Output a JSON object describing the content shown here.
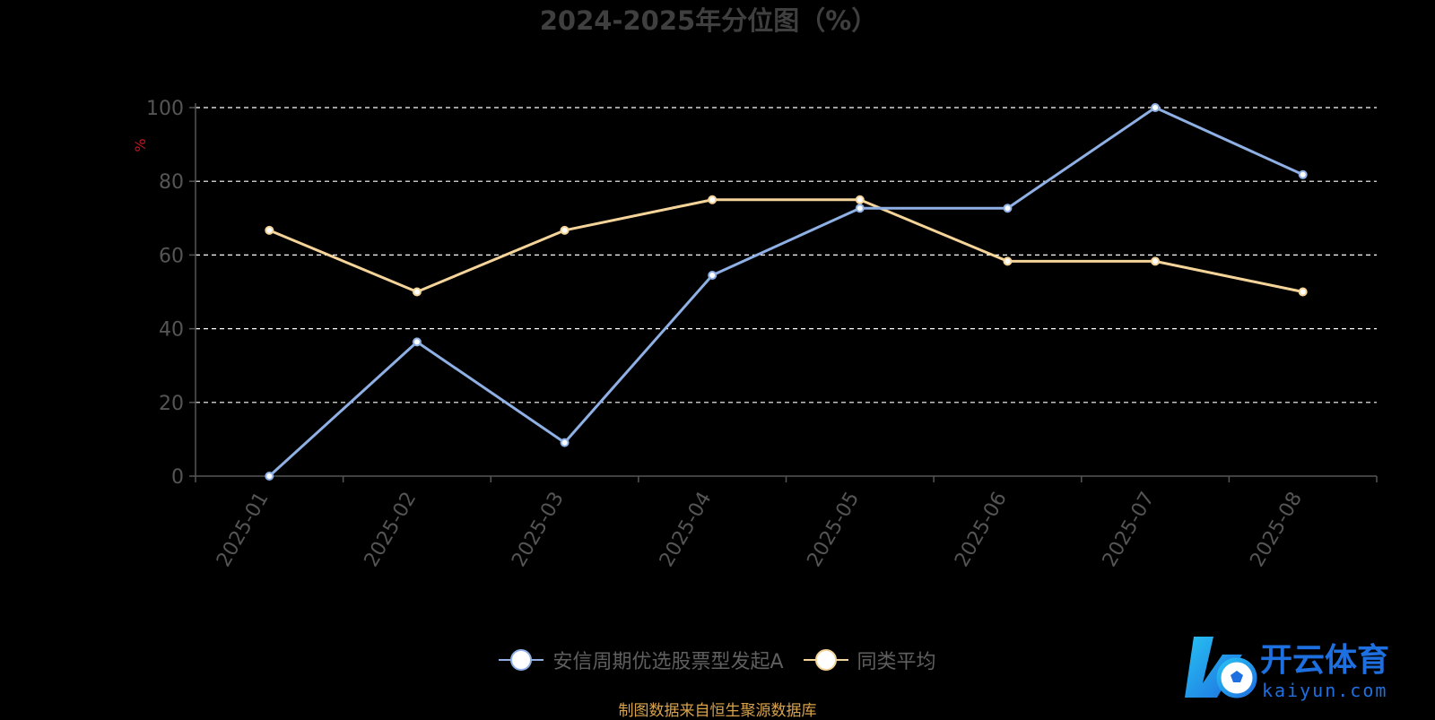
{
  "chart_data": {
    "type": "line",
    "title": "2024-2025年分位图（%）",
    "ylabel": "%",
    "ylim": [
      0,
      100
    ],
    "yticks": [
      0,
      20,
      40,
      60,
      80,
      100
    ],
    "grid": true,
    "legend_position": "bottom-center",
    "categories": [
      "2025-01",
      "2025-02",
      "2025-03",
      "2025-04",
      "2025-05",
      "2025-06",
      "2025-07",
      "2025-08"
    ],
    "series": [
      {
        "name": "安信周期优选股票型发起A",
        "color": "#8fb0e4",
        "values": [
          0,
          36.4,
          9.1,
          54.5,
          72.7,
          72.7,
          100,
          81.8
        ]
      },
      {
        "name": "同类平均",
        "color": "#f5d49a",
        "values": [
          66.7,
          50,
          66.7,
          75,
          75,
          58.3,
          58.3,
          50
        ]
      }
    ]
  },
  "source": "制图数据来自恒生聚源数据库",
  "watermark": {
    "brand": "开云体育",
    "domain": "kaiyun.com",
    "colors": [
      "#1e6fe0",
      "#27c1f2"
    ]
  }
}
